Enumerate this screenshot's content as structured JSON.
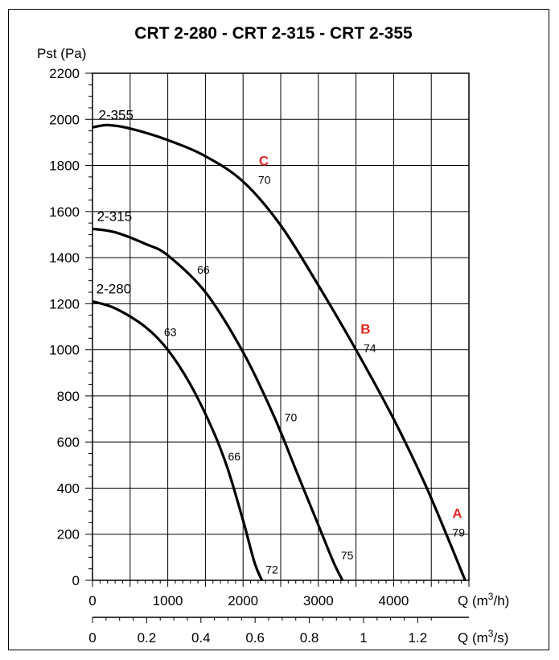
{
  "chart_data": {
    "type": "line",
    "title": "CRT 2-280 - CRT 2-315 - CRT 2-355",
    "ylabel": "Pst (Pa)",
    "xlabel": "Q (m3/h)",
    "xlabel_parts": {
      "base": "Q (m",
      "sup": "3",
      "tail": "/h)"
    },
    "x2label": "Q (m3/s)",
    "x2label_parts": {
      "base": "Q (m",
      "sup": "3",
      "tail": "/s)"
    },
    "xlim": [
      0,
      5000
    ],
    "ylim": [
      0,
      2200
    ],
    "x_ticks": [
      0,
      1000,
      2000,
      3000,
      4000
    ],
    "y_ticks": [
      0,
      200,
      400,
      600,
      800,
      1000,
      1200,
      1400,
      1600,
      1800,
      2000,
      2200
    ],
    "x2_ticks": [
      {
        "value": 0,
        "label": "0"
      },
      {
        "value": 0.2,
        "label": "0.2"
      },
      {
        "value": 0.4,
        "label": "0.4"
      },
      {
        "value": 0.6,
        "label": "0.6"
      },
      {
        "value": 0.8,
        "label": "0.8"
      },
      {
        "value": 1,
        "label": "1"
      },
      {
        "value": 1.2,
        "label": "1.2"
      }
    ],
    "grid": true,
    "series": [
      {
        "name": "2-355",
        "x": [
          0,
          200,
          500,
          1000,
          1500,
          2000,
          2500,
          3000,
          3500,
          4000,
          4400,
          4700,
          4950
        ],
        "y": [
          1965,
          1975,
          1960,
          1910,
          1840,
          1730,
          1540,
          1280,
          1000,
          700,
          430,
          200,
          0
        ]
      },
      {
        "name": "2-315",
        "x": [
          0,
          300,
          700,
          1000,
          1500,
          2000,
          2400,
          2700,
          3000,
          3200,
          3320
        ],
        "y": [
          1525,
          1510,
          1460,
          1410,
          1250,
          990,
          720,
          480,
          240,
          80,
          0
        ]
      },
      {
        "name": "2-280",
        "x": [
          0,
          300,
          700,
          1000,
          1300,
          1600,
          1800,
          2000,
          2150,
          2250
        ],
        "y": [
          1210,
          1180,
          1100,
          1000,
          850,
          650,
          480,
          260,
          80,
          0
        ]
      }
    ],
    "point_labels": [
      {
        "text": "70",
        "x": 2200,
        "y": 1720
      },
      {
        "text": "74",
        "x": 3600,
        "y": 990
      },
      {
        "text": "79",
        "x": 4780,
        "y": 190
      },
      {
        "text": "66",
        "x": 1390,
        "y": 1330
      },
      {
        "text": "70",
        "x": 2550,
        "y": 690
      },
      {
        "text": "75",
        "x": 3300,
        "y": 90
      },
      {
        "text": "63",
        "x": 950,
        "y": 1060
      },
      {
        "text": "66",
        "x": 1800,
        "y": 520
      },
      {
        "text": "72",
        "x": 2300,
        "y": 30
      }
    ],
    "markers": [
      {
        "text": "C",
        "x": 2210,
        "y": 1800
      },
      {
        "text": "B",
        "x": 3560,
        "y": 1070
      },
      {
        "text": "A",
        "x": 4780,
        "y": 270
      }
    ],
    "curve_labels": [
      {
        "text": "2-355",
        "x": 80,
        "y": 2000
      },
      {
        "text": "2-315",
        "x": 60,
        "y": 1560
      },
      {
        "text": "2-280",
        "x": 50,
        "y": 1245
      }
    ]
  }
}
